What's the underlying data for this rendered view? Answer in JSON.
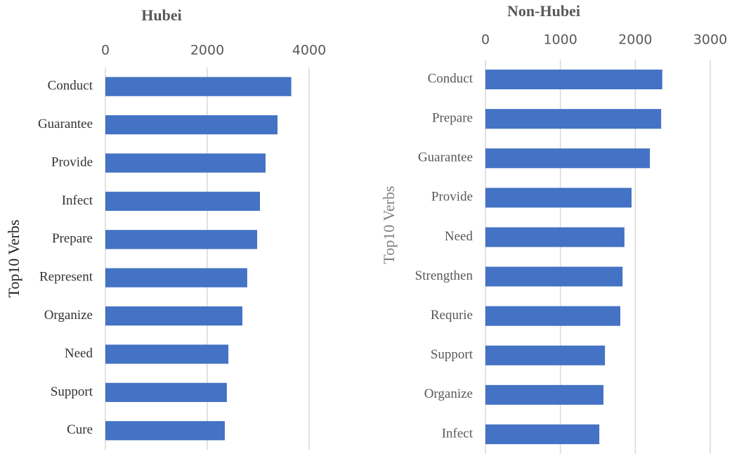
{
  "chart_data": [
    {
      "type": "bar",
      "title": "Hubei",
      "y_label": "Top10 Verbs",
      "categories": [
        "Conduct",
        "Guarantee",
        "Provide",
        "Infect",
        "Prepare",
        "Represent",
        "Organize",
        "Need",
        "Support",
        "Cure"
      ],
      "values": [
        3650,
        3380,
        3145,
        3035,
        2980,
        2785,
        2690,
        2415,
        2385,
        2345
      ],
      "color": "#4472c4",
      "xlim": [
        0,
        4000
      ],
      "xticks": [
        0,
        2000,
        4000
      ],
      "grid": true
    },
    {
      "type": "bar",
      "title": "Non-Hubei",
      "y_label": "Top10 Verbs",
      "categories": [
        "Conduct",
        "Prepare",
        "Guarantee",
        "Provide",
        "Need",
        "Strengthen",
        "Requrie",
        "Support",
        "Organize",
        "Infect"
      ],
      "values": [
        2360,
        2345,
        2195,
        1950,
        1855,
        1830,
        1800,
        1595,
        1575,
        1520
      ],
      "color": "#4472c4",
      "xlim": [
        0,
        3000
      ],
      "xticks": [
        0,
        1000,
        2000,
        3000
      ],
      "grid": true
    }
  ]
}
